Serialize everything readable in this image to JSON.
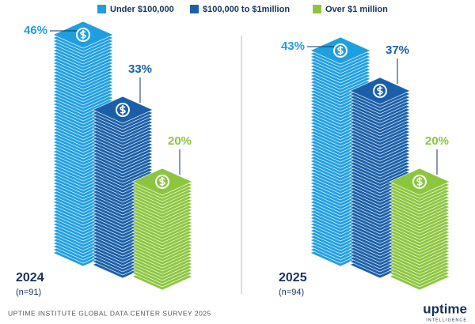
{
  "chart_data": {
    "type": "bar",
    "categories": [
      "2024",
      "2025"
    ],
    "category_notes": [
      "(n=91)",
      "(n=94)"
    ],
    "series": [
      {
        "name": "Under $100,000",
        "color": "#1f9fe0",
        "values": [
          46,
          43
        ],
        "value_labels": [
          "46%",
          "43%"
        ]
      },
      {
        "name": "$100,000 to $1million",
        "color": "#1a5fa8",
        "values": [
          33,
          37
        ],
        "value_labels": [
          "33%",
          "37%"
        ]
      },
      {
        "name": "Over $1 million",
        "color": "#8cc63f",
        "values": [
          20,
          20
        ],
        "value_labels": [
          "20%",
          "20%"
        ]
      }
    ]
  },
  "footer": "UPTIME INSTITUTE GLOBAL DATA CENTER SURVEY 2025",
  "logo": {
    "name": "uptime",
    "tagline": "INTELLIGENCE"
  }
}
